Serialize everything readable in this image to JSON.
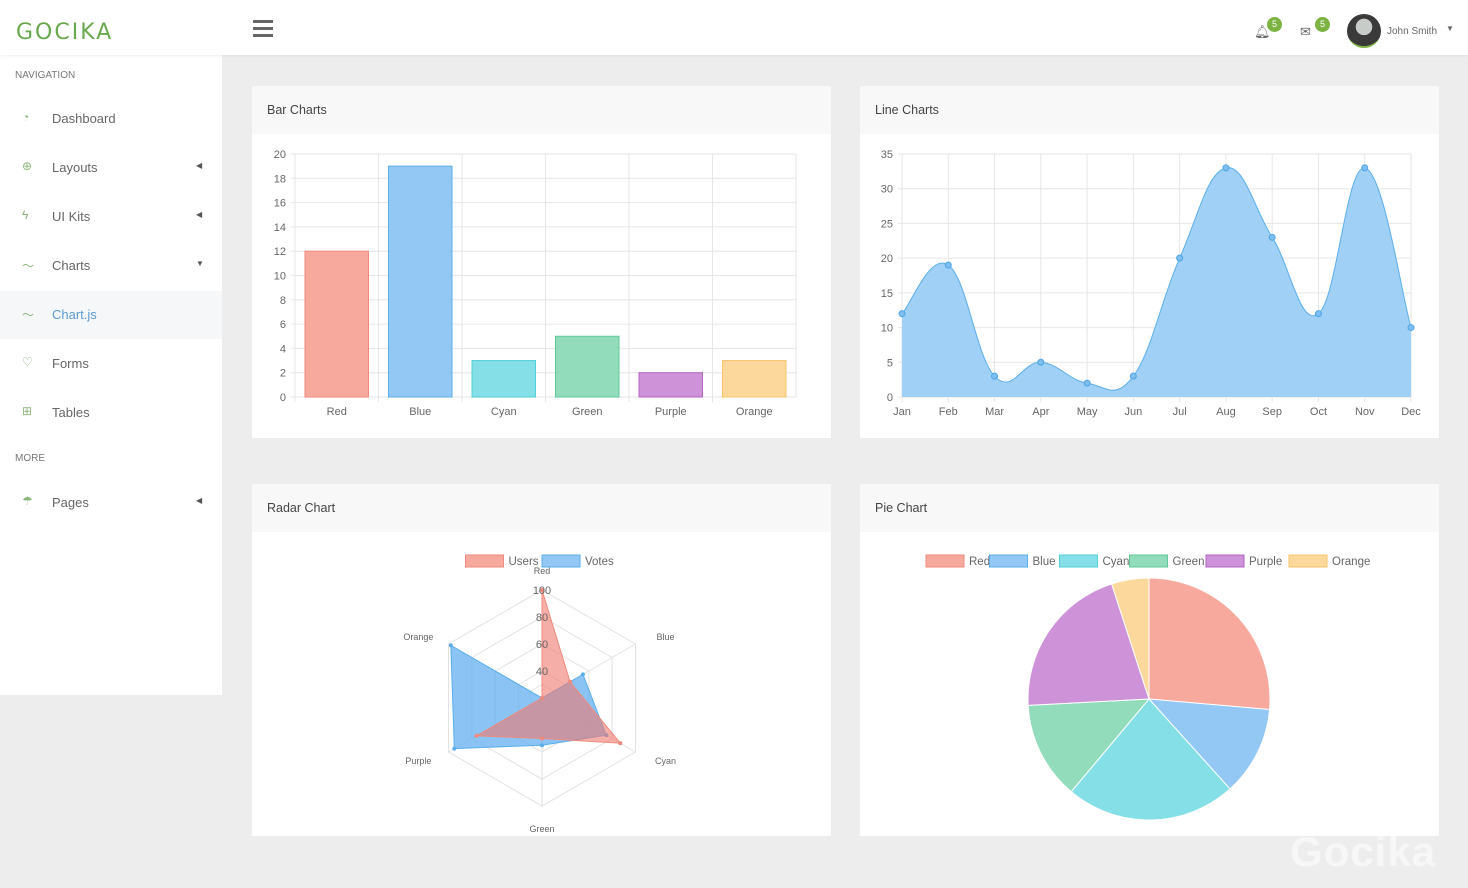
{
  "app": {
    "logo": "GOCIKA",
    "watermark": "Gocika"
  },
  "header": {
    "notifications_count": "5",
    "messages_count": "5",
    "user_name": "John Smith"
  },
  "sidebar": {
    "sections": [
      "NAVIGATION",
      "MORE"
    ],
    "items": [
      {
        "label": "Dashboard",
        "icon": "◔",
        "arrow": ""
      },
      {
        "label": "Layouts",
        "icon": "⊕",
        "arrow": "◀"
      },
      {
        "label": "UI Kits",
        "icon": "ϟ",
        "arrow": "◀"
      },
      {
        "label": "Charts",
        "icon": "〜",
        "arrow": "▼"
      },
      {
        "label": "Chart.js",
        "icon": "〜",
        "arrow": ""
      },
      {
        "label": "Forms",
        "icon": "♡",
        "arrow": ""
      },
      {
        "label": "Tables",
        "icon": "⊞",
        "arrow": ""
      }
    ],
    "more_items": [
      {
        "label": "Pages",
        "icon": "☂",
        "arrow": "◀"
      }
    ]
  },
  "colors": {
    "Red": [
      "#f7a99d",
      "#ef8a7c"
    ],
    "Blue": [
      "#92c8f3",
      "#5aaeea"
    ],
    "Cyan": [
      "#84dfe6",
      "#52cfd8"
    ],
    "Green": [
      "#92dcbc",
      "#60c99a"
    ],
    "Purple": [
      "#cd92d8",
      "#b564c4"
    ],
    "Orange": [
      "#fcd89c",
      "#f8c46a"
    ]
  },
  "chart_data": [
    {
      "id": "bar",
      "type": "bar",
      "title": "Bar Charts",
      "categories": [
        "Red",
        "Blue",
        "Cyan",
        "Green",
        "Purple",
        "Orange"
      ],
      "values": [
        12,
        19,
        3,
        5,
        2,
        3
      ],
      "ylim": [
        0,
        20
      ],
      "yticks": [
        0,
        2,
        4,
        6,
        8,
        10,
        12,
        14,
        16,
        18,
        20
      ]
    },
    {
      "id": "line",
      "type": "area",
      "title": "Line Charts",
      "categories": [
        "Jan",
        "Feb",
        "Mar",
        "Apr",
        "May",
        "Jun",
        "Jul",
        "Aug",
        "Sep",
        "Oct",
        "Nov",
        "Dec"
      ],
      "values": [
        12,
        19,
        3,
        5,
        2,
        3,
        20,
        33,
        23,
        12,
        33,
        10
      ],
      "ylim": [
        0,
        35
      ],
      "yticks": [
        0,
        5,
        10,
        15,
        20,
        25,
        30,
        35
      ]
    },
    {
      "id": "radar",
      "type": "radar",
      "title": "Radar Chart",
      "categories": [
        "Red",
        "Blue",
        "Cyan",
        "Green",
        "Purple",
        "Orange"
      ],
      "rlim": [
        20,
        100
      ],
      "rticks": [
        40,
        60,
        80,
        100
      ],
      "series": [
        {
          "name": "Users",
          "values": [
            100,
            44,
            87,
            50,
            76,
            20
          ]
        },
        {
          "name": "Votes",
          "values": [
            20,
            55,
            75,
            55,
            95,
            98
          ]
        }
      ]
    },
    {
      "id": "pie",
      "type": "pie",
      "title": "Pie Chart",
      "categories": [
        "Red",
        "Blue",
        "Cyan",
        "Green",
        "Purple",
        "Orange"
      ],
      "values": [
        95,
        43,
        82,
        47,
        75,
        18
      ]
    }
  ]
}
